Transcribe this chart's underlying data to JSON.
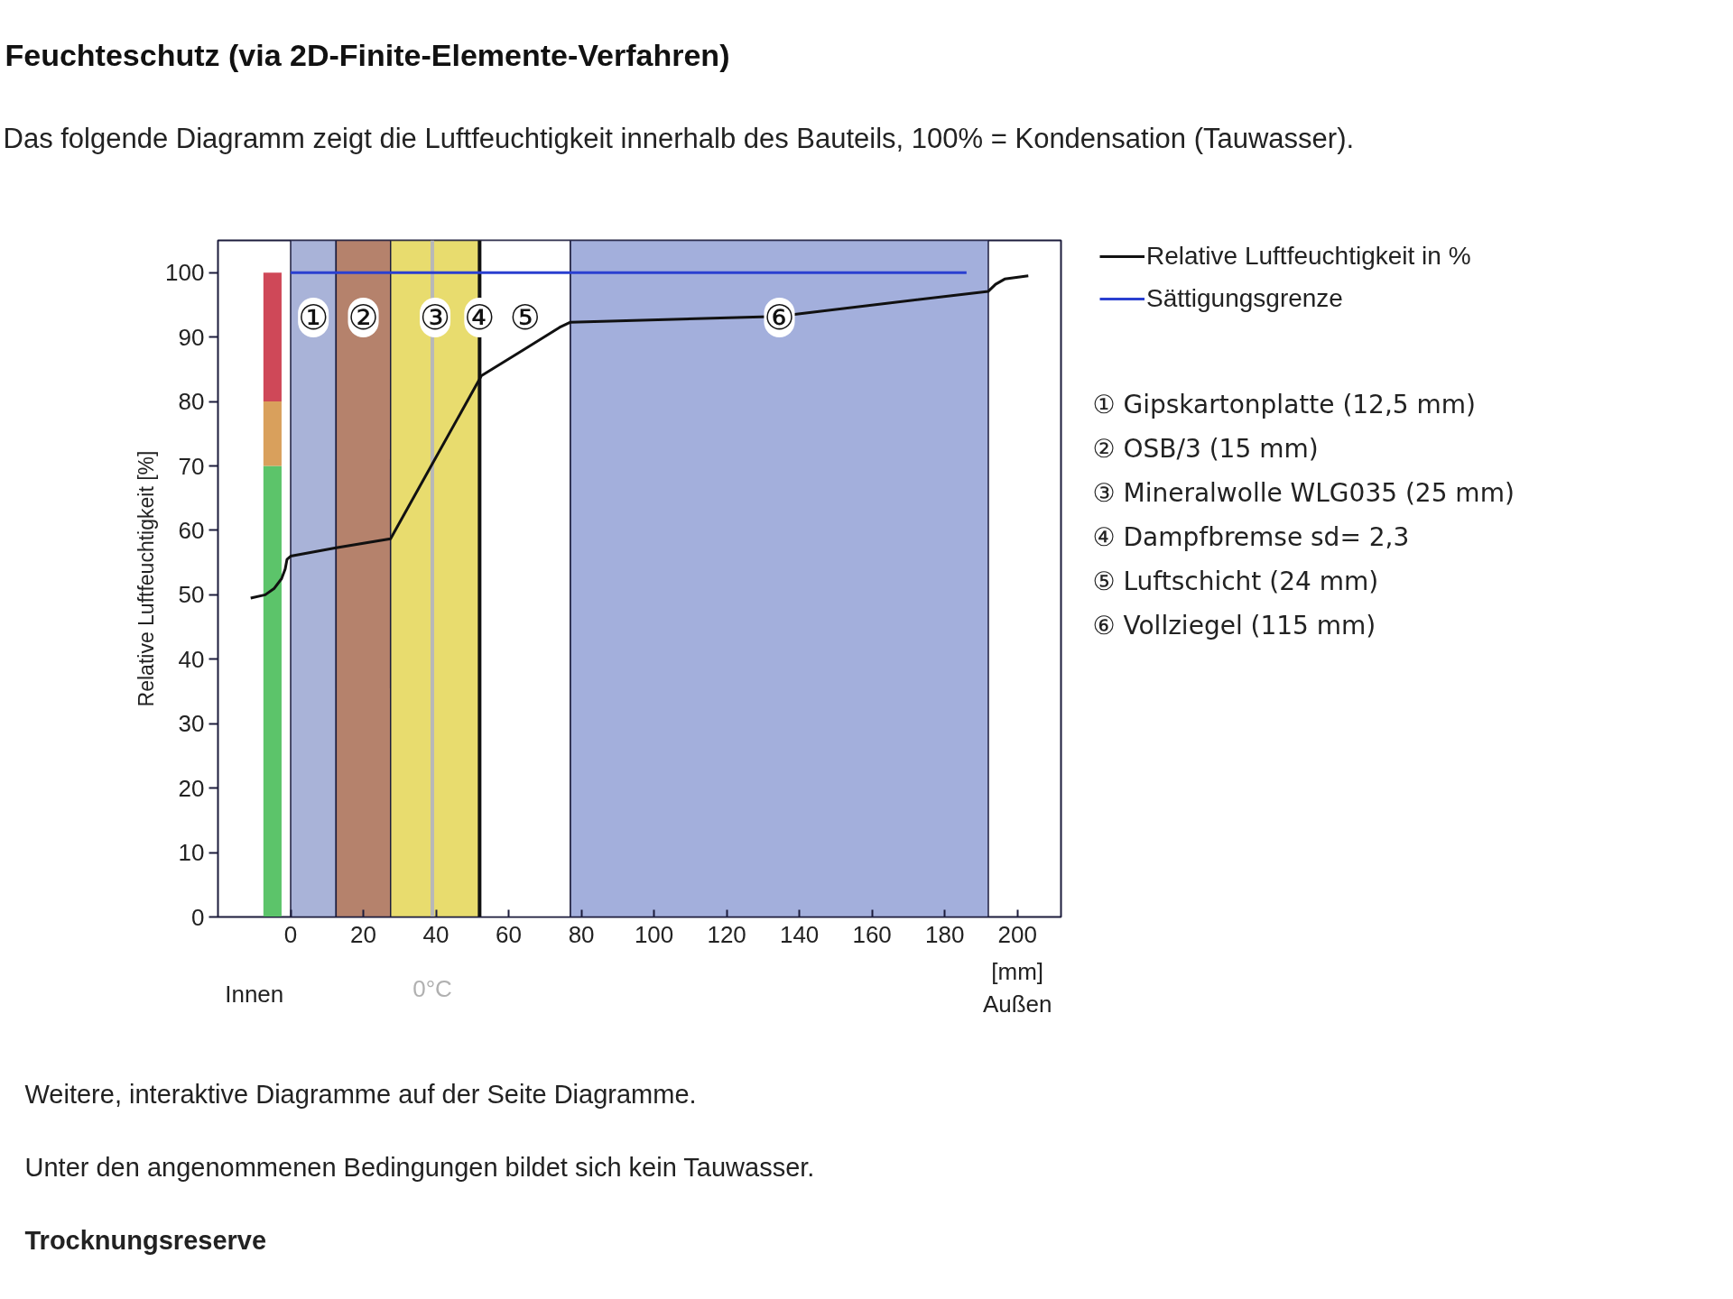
{
  "chart_data": {
    "type": "line",
    "title": "Feuchteschutz (via 2D-Finite-Elemente-Verfahren)",
    "subtitle": "Das folgende Diagramm zeigt die Luftfeuchtigkeit innerhalb des Bauteils, 100% = Kondensation (Tauwasser).",
    "xlabel": "[mm]",
    "ylabel": "Relative Luftfeuchtigkeit [%]",
    "xlim": [
      -20,
      212
    ],
    "ylim": [
      0,
      105
    ],
    "xticks": [
      0,
      20,
      40,
      60,
      80,
      100,
      120,
      140,
      160,
      180,
      200
    ],
    "yticks": [
      0,
      10,
      20,
      30,
      40,
      50,
      60,
      70,
      80,
      90,
      100
    ],
    "grid": false,
    "legend": "right",
    "stacked": true,
    "series": [
      {
        "type": "bar",
        "x": [
          -5
        ],
        "values": [
          70
        ],
        "color": "#5cc46a"
      },
      {
        "type": "bar",
        "x": [
          -5
        ],
        "values": [
          10
        ],
        "color": "#d9a05c"
      },
      {
        "type": "bar",
        "x": [
          -5
        ],
        "values": [
          20
        ],
        "color": "#cf4858"
      },
      {
        "name": "Relative Luftfeuchtigkeit in %",
        "color": "#111111",
        "x": [
          -11,
          -7,
          -4.5,
          -2.5,
          -1.5,
          -1,
          0,
          12.5,
          27.5,
          52.5,
          64,
          74,
          77,
          134,
          192,
          194,
          196.5,
          203
        ],
        "values": [
          49.5,
          50,
          51,
          52.5,
          54,
          55.5,
          56,
          57.3,
          58.7,
          84,
          88,
          91.5,
          92.3,
          93.2,
          97.1,
          98.2,
          99,
          99.5
        ]
      },
      {
        "name": "Sättigungsgrenze",
        "color": "#2a3fd0",
        "x": [
          0,
          186
        ],
        "values": [
          100,
          100
        ]
      }
    ],
    "bands": [
      {
        "axis": "x",
        "from": 0,
        "to": 12.5,
        "label": "①",
        "color": "#a9b3d8"
      },
      {
        "axis": "x",
        "from": 12.5,
        "to": 27.5,
        "label": "②",
        "color": "#b5826c"
      },
      {
        "axis": "x",
        "from": 27.5,
        "to": 52,
        "label": "③",
        "color": "#e8dc6e"
      },
      {
        "axis": "x",
        "from": 52,
        "to": 77,
        "label": "⑤",
        "color": "#ffffff"
      },
      {
        "axis": "x",
        "from": 77,
        "to": 192,
        "label": "⑥",
        "color": "#a3afdc"
      }
    ],
    "ref_lines": [
      {
        "axis": "x",
        "value": 39,
        "color": "#b8b8b8"
      },
      {
        "axis": "x",
        "value": 52,
        "label": "④",
        "color": "#111111"
      }
    ],
    "annotations": [
      "① Gipskartonplatte (12,5 mm)",
      "② OSB/3 (15 mm)",
      "③ Mineralwolle WLG035 (25 mm)",
      "④ Dampfbremse sd= 2,3",
      "⑤ Luftschicht (24 mm)",
      "⑥ Vollziegel (115 mm)",
      {
        "text": "0°C",
        "x": 39,
        "y": 0
      },
      "Innen",
      "Außen",
      "Weitere, interaktive Diagramme auf der Seite Diagramme.",
      "Unter den angenommenen Bedingungen bildet sich kein Tauwasser.",
      "Trocknungsreserve"
    ]
  }
}
